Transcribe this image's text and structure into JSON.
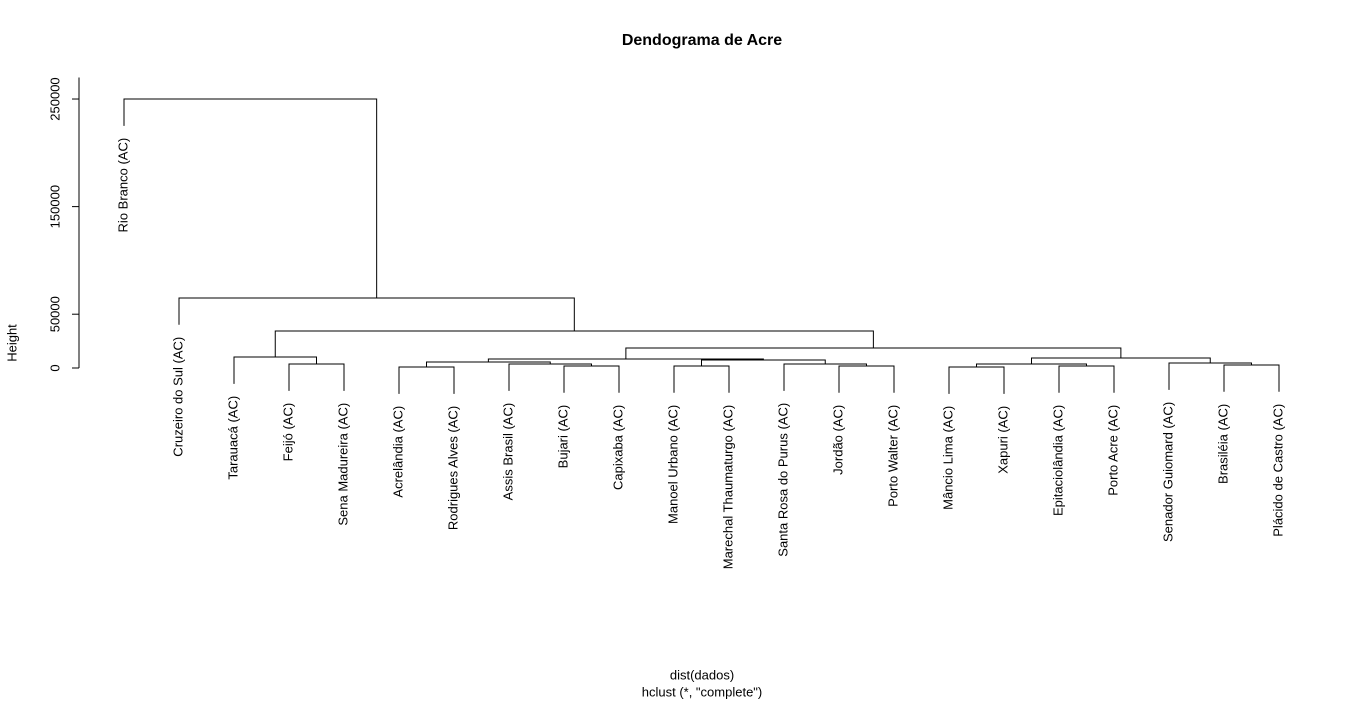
{
  "chart_data": {
    "type": "dendrogram",
    "title": "Dendograma de Acre",
    "xlabel": "dist(dados)",
    "subtitle": "hclust (*, \"complete\")",
    "ylabel": "Height",
    "ylim": [
      0,
      270000
    ],
    "yticks": [
      0,
      50000,
      150000,
      250000
    ],
    "hang": 0.1,
    "labels": [
      "Rio Branco (AC)",
      "Cruzeiro do Sul (AC)",
      "Tarauacá (AC)",
      "Feijó (AC)",
      "Sena Madureira (AC)",
      "Acrelândia (AC)",
      "Rodrigues Alves (AC)",
      "Assis Brasil (AC)",
      "Bujari (AC)",
      "Capixaba (AC)",
      "Manoel Urbano (AC)",
      "Marechal Thaumaturgo (AC)",
      "Santa Rosa do Purus (AC)",
      "Jordão (AC)",
      "Porto Walter (AC)",
      "Mâncio Lima (AC)",
      "Xapuri (AC)",
      "Epitaciolândia (AC)",
      "Porto Acre (AC)",
      "Senador Guiomard (AC)",
      "Brasiléia (AC)",
      "Plácido de Castro (AC)"
    ],
    "merges": [
      [
        -6,
        -7,
        900
      ],
      [
        -9,
        -10,
        1900
      ],
      [
        -8,
        2,
        3700
      ],
      [
        1,
        3,
        5600
      ],
      [
        -11,
        -12,
        1900
      ],
      [
        -14,
        -15,
        1900
      ],
      [
        -13,
        6,
        3700
      ],
      [
        5,
        7,
        7400
      ],
      [
        4,
        8,
        8400
      ],
      [
        -16,
        -17,
        900
      ],
      [
        -18,
        -19,
        1900
      ],
      [
        10,
        11,
        3700
      ],
      [
        -21,
        -22,
        2800
      ],
      [
        -20,
        13,
        4600
      ],
      [
        12,
        14,
        9300
      ],
      [
        9,
        15,
        18600
      ],
      [
        -4,
        -5,
        3700
      ],
      [
        -3,
        17,
        10200
      ],
      [
        18,
        16,
        34400
      ],
      [
        -2,
        19,
        65100
      ],
      [
        -1,
        20,
        250000
      ]
    ]
  }
}
